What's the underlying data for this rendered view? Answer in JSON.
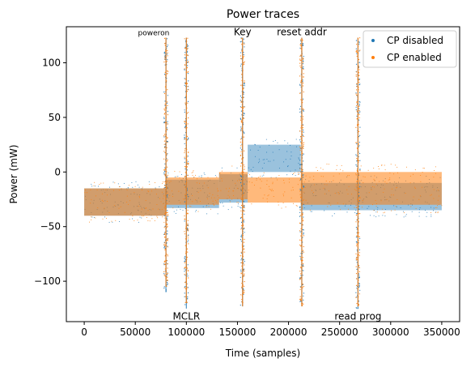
{
  "chart_data": {
    "type": "scatter",
    "title": "Power traces",
    "xlabel": "Time (samples)",
    "ylabel": "Power (mW)",
    "xlim": [
      -17500,
      367500
    ],
    "ylim": [
      -137,
      133
    ],
    "xticks": [
      0,
      50000,
      100000,
      150000,
      200000,
      250000,
      300000,
      350000
    ],
    "xtick_labels": [
      "0",
      "50000",
      "100000",
      "150000",
      "200000",
      "250000",
      "300000",
      "350000"
    ],
    "yticks": [
      -100,
      -50,
      0,
      50,
      100
    ],
    "ytick_labels": [
      "−100",
      "−50",
      "0",
      "50",
      "100"
    ],
    "legend": {
      "placement": "top-right"
    },
    "grid": false,
    "series": [
      {
        "name": "CP disabled",
        "color": "#1f77b4",
        "segments": [
          {
            "x": [
              0,
              80000
            ],
            "y_range": [
              -40,
              -15
            ]
          },
          {
            "x": [
              80000,
              132000
            ],
            "y_range": [
              -33,
              -7
            ]
          },
          {
            "x": [
              132000,
              160000
            ],
            "y_range": [
              -28,
              -2
            ]
          },
          {
            "x": [
              160000,
              212000
            ],
            "y_range": [
              0,
              25
            ]
          },
          {
            "x": [
              212000,
              350000
            ],
            "y_range": [
              -35,
              -10
            ]
          }
        ],
        "spikes": [
          {
            "x": 80000,
            "y_range": [
              -110,
              123
            ]
          },
          {
            "x": 100000,
            "y_range": [
              -125,
              123
            ]
          },
          {
            "x": 155000,
            "y_range": [
              -123,
              123
            ]
          },
          {
            "x": 213000,
            "y_range": [
              -123,
              123
            ]
          },
          {
            "x": 268000,
            "y_range": [
              -125,
              123
            ]
          }
        ]
      },
      {
        "name": "CP enabled",
        "color": "#ff7f0e",
        "segments": [
          {
            "x": [
              0,
              80000
            ],
            "y_range": [
              -40,
              -15
            ]
          },
          {
            "x": [
              80000,
              132000
            ],
            "y_range": [
              -30,
              -5
            ]
          },
          {
            "x": [
              132000,
              160000
            ],
            "y_range": [
              -25,
              0
            ]
          },
          {
            "x": [
              160000,
              212000
            ],
            "y_range": [
              -28,
              -5
            ]
          },
          {
            "x": [
              212000,
              350000
            ],
            "y_range": [
              -30,
              0
            ]
          }
        ],
        "spikes": [
          {
            "x": 80000,
            "y_range": [
              -105,
              123
            ]
          },
          {
            "x": 100000,
            "y_range": [
              -120,
              123
            ]
          },
          {
            "x": 155000,
            "y_range": [
              -123,
              123
            ]
          },
          {
            "x": 213000,
            "y_range": [
              -123,
              123
            ]
          },
          {
            "x": 268000,
            "y_range": [
              -123,
              123
            ]
          }
        ]
      }
    ],
    "annotations": [
      {
        "text": "poweron",
        "x": 68000,
        "y": 128,
        "size": "small"
      },
      {
        "text": "Key",
        "x": 155000,
        "y": 128,
        "size": "normal"
      },
      {
        "text": "reset addr",
        "x": 213000,
        "y": 128,
        "size": "normal"
      },
      {
        "text": "MCLR",
        "x": 100000,
        "y": -132,
        "size": "normal"
      },
      {
        "text": "read prog",
        "x": 268000,
        "y": -132,
        "size": "normal"
      }
    ]
  }
}
